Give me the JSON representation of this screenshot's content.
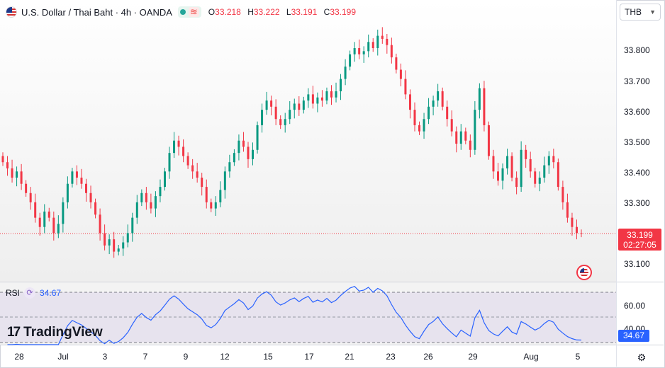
{
  "header": {
    "symbol_title": "U.S. Dollar / Thai Baht · 4h · OANDA",
    "ohlc": [
      {
        "key": "O",
        "value": "33.218"
      },
      {
        "key": "H",
        "value": "33.222"
      },
      {
        "key": "L",
        "value": "33.191"
      },
      {
        "key": "C",
        "value": "33.199"
      }
    ],
    "flag_icon": "us-flag-icon",
    "market_status_icon": "market-open-dot-icon",
    "indicator_icon": "wave-icon"
  },
  "currency_selector": {
    "value": "THB"
  },
  "price_axis": [
    "33.800",
    "33.700",
    "33.600",
    "33.500",
    "33.400",
    "33.300",
    "33.100"
  ],
  "last_price": {
    "value": "33.199",
    "countdown": "02:27:05"
  },
  "rsi": {
    "label": "RSI",
    "value": "34.67",
    "ticks": [
      "60.00",
      "40.00"
    ],
    "upper": 70,
    "lower": 30
  },
  "time_axis": [
    "28",
    "Jul",
    "3",
    "7",
    "9",
    "12",
    "15",
    "17",
    "21",
    "23",
    "26",
    "29",
    "Aug",
    "5"
  ],
  "branding": {
    "name": "TradingView"
  },
  "colors": {
    "up": "#089981",
    "down": "#f23645",
    "rsi_line": "#2962ff",
    "rsi_band": "#7e57c2"
  },
  "chart_data": {
    "type": "candlestick",
    "title": "U.S. Dollar / Thai Baht · 4h · OANDA",
    "ylim": [
      33.05,
      33.9
    ],
    "close": [
      33.43,
      33.41,
      33.38,
      33.4,
      33.36,
      33.33,
      33.3,
      33.25,
      33.22,
      33.27,
      33.25,
      33.2,
      33.23,
      33.3,
      33.36,
      33.4,
      33.38,
      33.36,
      33.33,
      33.3,
      33.26,
      33.2,
      33.16,
      33.18,
      33.14,
      33.15,
      33.17,
      33.2,
      33.25,
      33.3,
      33.33,
      33.3,
      33.28,
      33.32,
      33.35,
      33.4,
      33.46,
      33.5,
      33.48,
      33.45,
      33.42,
      33.4,
      33.38,
      33.35,
      33.3,
      33.28,
      33.3,
      33.34,
      33.4,
      33.43,
      33.46,
      33.5,
      33.48,
      33.44,
      33.47,
      33.55,
      33.6,
      33.63,
      33.61,
      33.57,
      33.55,
      33.57,
      33.6,
      33.62,
      33.6,
      33.63,
      33.65,
      33.62,
      33.64,
      33.63,
      33.66,
      33.64,
      33.66,
      33.7,
      33.74,
      33.78,
      33.8,
      33.78,
      33.79,
      33.82,
      33.8,
      33.84,
      33.83,
      33.81,
      33.77,
      33.73,
      33.7,
      33.65,
      33.6,
      33.55,
      33.53,
      33.57,
      33.61,
      33.63,
      33.66,
      33.61,
      33.57,
      33.53,
      33.49,
      33.53,
      33.5,
      33.47,
      33.6,
      33.67,
      33.55,
      33.45,
      33.4,
      33.37,
      33.41,
      33.45,
      33.38,
      33.35,
      33.47,
      33.44,
      33.4,
      33.36,
      33.38,
      33.42,
      33.45,
      33.43,
      33.35,
      33.3,
      33.25,
      33.22,
      33.2,
      33.199
    ]
  }
}
